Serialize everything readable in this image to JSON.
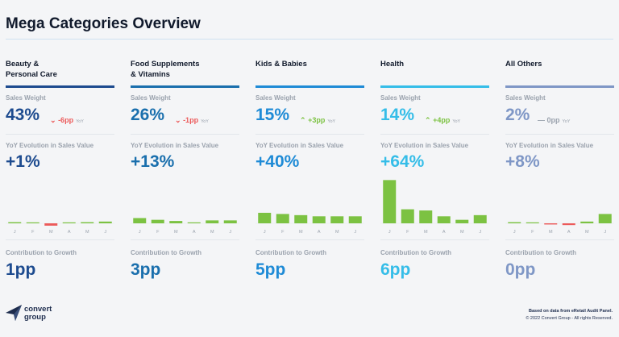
{
  "page": {
    "title": "Mega Categories Overview"
  },
  "labels": {
    "sales_weight": "Sales Weight",
    "yoy_evolution": "YoY Evolution in Sales Value",
    "contribution": "Contribution to Growth",
    "yoy_tag": "YoY"
  },
  "colors": {
    "green": "#7cc242",
    "red": "#ec5a5a",
    "grey": "#9aa2ad"
  },
  "categories": [
    {
      "name": "Beauty &\nPersonal Care",
      "accent": "#1d4b8f",
      "sales_weight": "43%",
      "sw_change": "-6pp",
      "sw_dir": "down",
      "yoy_evolution": "+1%",
      "contribution": "1pp",
      "months": [
        "J",
        "F",
        "M",
        "A",
        "M",
        "J"
      ],
      "monthly_values": [
        1,
        0.5,
        -2,
        0.5,
        1,
        1.5
      ]
    },
    {
      "name": "Food Supplements\n& Vitamins",
      "accent": "#1a6fad",
      "sales_weight": "26%",
      "sw_change": "-1pp",
      "sw_dir": "down",
      "yoy_evolution": "+13%",
      "contribution": "3pp",
      "months": [
        "J",
        "F",
        "M",
        "A",
        "M",
        "J"
      ],
      "monthly_values": [
        4.5,
        3,
        2,
        0.5,
        2.5,
        2.5
      ]
    },
    {
      "name": "Kids & Babies",
      "accent": "#1f8bd6",
      "sales_weight": "15%",
      "sw_change": "+3pp",
      "sw_dir": "up",
      "yoy_evolution": "+40%",
      "contribution": "5pp",
      "months": [
        "J",
        "F",
        "M",
        "A",
        "M",
        "J"
      ],
      "monthly_values": [
        9,
        8,
        7,
        6,
        6,
        6
      ]
    },
    {
      "name": "Health",
      "accent": "#35bde8",
      "sales_weight": "14%",
      "sw_change": "+4pp",
      "sw_dir": "up",
      "yoy_evolution": "+64%",
      "contribution": "6pp",
      "months": [
        "J",
        "F",
        "M",
        "A",
        "M",
        "J"
      ],
      "monthly_values": [
        37,
        12,
        11,
        6,
        3,
        7
      ]
    },
    {
      "name": "All Others",
      "accent": "#7f97c6",
      "sales_weight": "2%",
      "sw_change": "0pp",
      "sw_dir": "flat",
      "yoy_evolution": "+8%",
      "contribution": "0pp",
      "months": [
        "J",
        "F",
        "M",
        "A",
        "M",
        "J"
      ],
      "monthly_values": [
        1,
        0.5,
        -1,
        -1.5,
        1.5,
        8
      ]
    }
  ],
  "chart_data": {
    "type": "bar",
    "categories": [
      "J",
      "F",
      "M",
      "A",
      "M",
      "J"
    ],
    "series": [
      {
        "name": "Beauty & Personal Care",
        "values": [
          1,
          0.5,
          -2,
          0.5,
          1,
          1.5
        ]
      },
      {
        "name": "Food Supplements & Vitamins",
        "values": [
          4.5,
          3,
          2,
          0.5,
          2.5,
          2.5
        ]
      },
      {
        "name": "Kids & Babies",
        "values": [
          9,
          8,
          7,
          6,
          6,
          6
        ]
      },
      {
        "name": "Health",
        "values": [
          37,
          12,
          11,
          6,
          3,
          7
        ]
      },
      {
        "name": "All Others",
        "values": [
          1,
          0.5,
          -1,
          -1.5,
          1.5,
          8
        ]
      }
    ],
    "title": "",
    "xlabel": "",
    "ylabel": "",
    "ylim": [
      -3,
      38
    ],
    "grid": false
  },
  "brand": {
    "name": "convert\ngroup"
  },
  "footer": {
    "source": "Based on data from eRetail Audit Panel.",
    "copyright": "© 2022 Convert Group - All rights Reserved."
  }
}
